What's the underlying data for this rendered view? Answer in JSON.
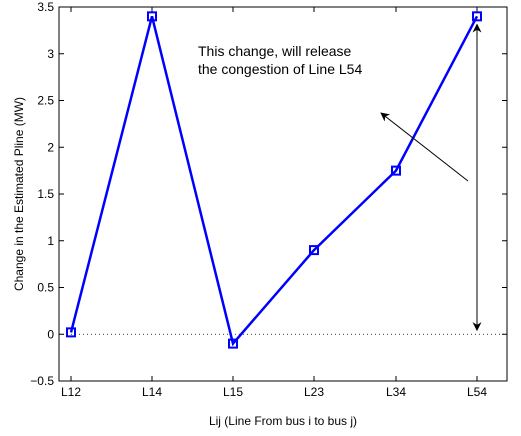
{
  "chart_data": {
    "type": "line",
    "title": "",
    "xlabel": "Lij (Line From bus i to bus j)",
    "ylabel": "Change in the Estimated Pline (MW)",
    "categories": [
      "L12",
      "L14",
      "L15",
      "L23",
      "L34",
      "L54"
    ],
    "series": [
      {
        "values": [
          0.02,
          3.4,
          -0.1,
          0.9,
          1.75,
          3.4
        ],
        "color": "#0000ff",
        "marker": "square"
      }
    ],
    "ylim": [
      -0.5,
      3.5
    ],
    "yticks": [
      -0.5,
      0,
      0.5,
      1,
      1.5,
      2,
      2.5,
      3,
      3.5
    ],
    "ytick_labels": [
      "−0.5",
      "0",
      "0.5",
      "1",
      "1.5",
      "2",
      "2.5",
      "3",
      "3.5"
    ],
    "zero_line": "dotted",
    "grid": false,
    "legend": "none",
    "annotation": {
      "lines": [
        "This change, will release",
        "the congestion of Line L54"
      ]
    },
    "double_arrow_range": [
      0,
      3.4
    ]
  }
}
